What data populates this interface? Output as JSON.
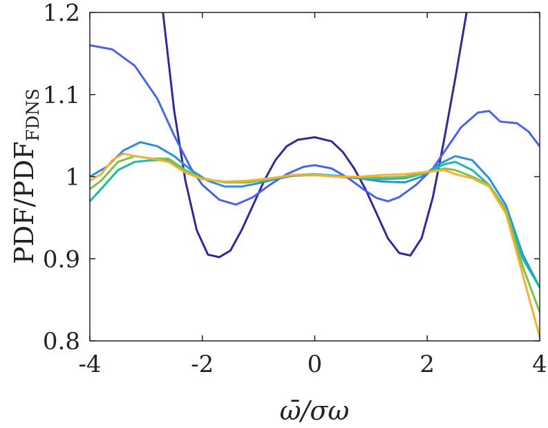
{
  "chart_data": {
    "type": "line",
    "xlim": [
      -4,
      4
    ],
    "ylim": [
      0.8,
      1.2
    ],
    "xticks": [
      "-4",
      "-2",
      "0",
      "2",
      "4"
    ],
    "yticks": [
      "0.8",
      "0.9",
      "1",
      "1.1",
      "1.2"
    ],
    "xlabel": "ω̄/σω",
    "ylabel": "PDF/PDF",
    "ylabel_subscript": "FDNS",
    "grid": false,
    "legend": "none",
    "series": [
      {
        "color": "#2e2a9c",
        "x": [
          -3.0,
          -2.7,
          -2.5,
          -2.3,
          -2.1,
          -1.9,
          -1.7,
          -1.5,
          -1.3,
          -1.1,
          -0.9,
          -0.7,
          -0.5,
          -0.3,
          0.0,
          0.3,
          0.5,
          0.7,
          0.9,
          1.1,
          1.3,
          1.5,
          1.7,
          1.9,
          2.1,
          2.3,
          2.5,
          2.7,
          2.9
        ],
        "y": [
          1.35,
          1.2,
          1.08,
          0.995,
          0.935,
          0.905,
          0.902,
          0.91,
          0.935,
          0.965,
          0.995,
          1.02,
          1.037,
          1.045,
          1.048,
          1.043,
          1.03,
          1.01,
          0.985,
          0.955,
          0.925,
          0.907,
          0.904,
          0.925,
          0.975,
          1.045,
          1.12,
          1.2,
          1.3
        ]
      },
      {
        "color": "#4a63e6",
        "x": [
          -4.0,
          -3.6,
          -3.2,
          -2.8,
          -2.5,
          -2.2,
          -2.0,
          -1.7,
          -1.4,
          -1.1,
          -0.8,
          -0.5,
          -0.2,
          0.0,
          0.3,
          0.6,
          0.9,
          1.1,
          1.3,
          1.5,
          1.8,
          2.1,
          2.3,
          2.6,
          2.9,
          3.1,
          3.3,
          3.6,
          3.8,
          4.0
        ],
        "y": [
          1.16,
          1.155,
          1.135,
          1.095,
          1.05,
          1.01,
          0.99,
          0.972,
          0.966,
          0.975,
          0.99,
          1.003,
          1.012,
          1.014,
          1.01,
          0.998,
          0.983,
          0.974,
          0.97,
          0.975,
          0.99,
          1.01,
          1.03,
          1.06,
          1.078,
          1.08,
          1.067,
          1.065,
          1.055,
          1.037
        ]
      },
      {
        "color": "#2b8fe0",
        "x": [
          -4.0,
          -3.7,
          -3.4,
          -3.1,
          -2.8,
          -2.5,
          -2.2,
          -1.9,
          -1.6,
          -1.3,
          -1.0,
          -0.7,
          -0.4,
          0.0,
          0.4,
          0.8,
          1.2,
          1.6,
          1.9,
          2.2,
          2.5,
          2.8,
          3.1,
          3.4,
          3.7,
          4.0
        ],
        "y": [
          1.0,
          1.012,
          1.032,
          1.042,
          1.037,
          1.025,
          1.008,
          0.995,
          0.988,
          0.988,
          0.992,
          0.997,
          1.001,
          1.002,
          1.0,
          0.998,
          0.994,
          0.993,
          1.0,
          1.015,
          1.025,
          1.02,
          0.998,
          0.965,
          0.905,
          0.865
        ]
      },
      {
        "color": "#1fb8aa",
        "x": [
          -4.0,
          -3.8,
          -3.5,
          -3.2,
          -2.9,
          -2.6,
          -2.3,
          -2.0,
          -1.6,
          -1.2,
          -0.8,
          -0.4,
          0.0,
          0.4,
          0.8,
          1.2,
          1.6,
          2.0,
          2.3,
          2.5,
          2.8,
          3.1,
          3.4,
          3.7,
          4.0
        ],
        "y": [
          0.97,
          0.985,
          1.008,
          1.018,
          1.02,
          1.02,
          1.008,
          0.998,
          0.993,
          0.993,
          0.997,
          1.002,
          1.003,
          1.001,
          0.999,
          0.997,
          0.998,
          1.005,
          1.015,
          1.018,
          1.008,
          0.99,
          0.96,
          0.9,
          0.865
        ]
      },
      {
        "color": "#7cc24a",
        "x": [
          -4.0,
          -3.8,
          -3.5,
          -3.2,
          -2.9,
          -2.6,
          -2.3,
          -2.0,
          -1.6,
          -1.2,
          -0.8,
          -0.4,
          0.0,
          0.4,
          0.8,
          1.2,
          1.6,
          2.0,
          2.3,
          2.5,
          2.8,
          3.1,
          3.4,
          3.7,
          4.0
        ],
        "y": [
          0.985,
          0.995,
          1.018,
          1.025,
          1.022,
          1.022,
          1.008,
          0.998,
          0.993,
          0.993,
          0.997,
          1.002,
          1.002,
          1.0,
          0.999,
          0.999,
          1.0,
          1.005,
          1.01,
          1.008,
          1.0,
          0.99,
          0.96,
          0.89,
          0.835
        ]
      },
      {
        "color": "#f2b233",
        "x": [
          -4.0,
          -3.8,
          -3.6,
          -3.4,
          -3.2,
          -2.9,
          -2.6,
          -2.3,
          -2.0,
          -1.6,
          -1.2,
          -0.8,
          -0.4,
          0.0,
          0.4,
          0.8,
          1.2,
          1.6,
          2.0,
          2.3,
          2.5,
          2.8,
          3.1,
          3.4,
          3.7,
          4.0
        ],
        "y": [
          0.995,
          1.003,
          1.02,
          1.028,
          1.025,
          1.022,
          1.018,
          1.005,
          0.997,
          0.994,
          0.995,
          0.998,
          1.002,
          1.002,
          1.0,
          1.0,
          1.002,
          1.003,
          1.006,
          1.008,
          1.003,
          0.998,
          0.988,
          0.955,
          0.88,
          0.805
        ]
      }
    ]
  }
}
